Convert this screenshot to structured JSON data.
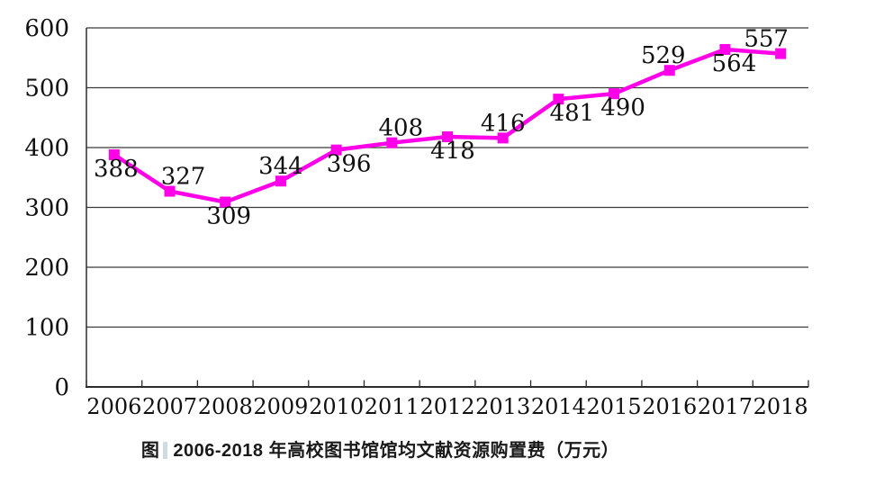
{
  "chart_data": {
    "type": "line",
    "title": "图 2006-2018 年高校图书馆馆均文献资源购置费（万元）",
    "categories": [
      "2006",
      "2007",
      "2008",
      "2009",
      "2010",
      "2011",
      "2012",
      "2013",
      "2014",
      "2015",
      "2016",
      "2017",
      "2018"
    ],
    "values": [
      388,
      327,
      309,
      344,
      396,
      408,
      418,
      416,
      481,
      490,
      529,
      564,
      557
    ],
    "ylim": [
      0,
      600
    ],
    "ytick_step": 100,
    "yticks": [
      0,
      100,
      200,
      300,
      400,
      500,
      600
    ],
    "grid": "horizontal",
    "legend_position": "none",
    "xlabel": "",
    "ylabel": "",
    "marker": "filled-square",
    "data_labels_shown": true,
    "label_positions": [
      "below",
      "above",
      "below",
      "above",
      "below",
      "above",
      "below",
      "above",
      "below",
      "below",
      "above",
      "below",
      "above"
    ],
    "label_dx": [
      2,
      15,
      4,
      0,
      14,
      10,
      6,
      0,
      15,
      10,
      -7,
      10,
      -16
    ]
  },
  "caption": {
    "prefix": "图",
    "text": "2006-2018 年高校图书馆馆均文献资源购置费（万元）"
  },
  "colors": {
    "line": "#FF00E8",
    "marker": "#FF00E8",
    "grid": "#3a3a3a",
    "axis": "#2b2b2b",
    "text": "#111111",
    "caption_text": "#1a1a1a",
    "caption_bar": "#cfdbe2",
    "background": "#ffffff"
  }
}
